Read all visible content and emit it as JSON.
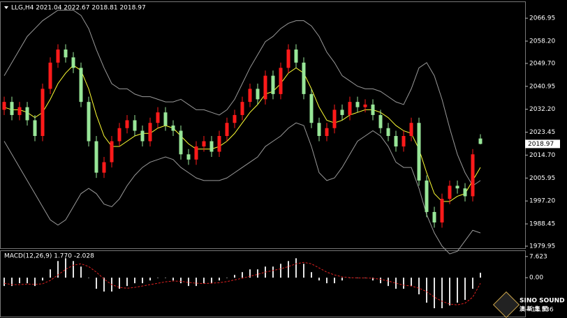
{
  "chart_data": {
    "type": "candlestick",
    "header": "LLG,H4  2021.04 2022.67 2018.81 2018.97",
    "up_color": "#ff1a1a",
    "down_color": "#98e698",
    "open": [
      2032,
      2035,
      2030,
      2033,
      2028,
      2022,
      2040,
      2050,
      2055,
      2052,
      2048,
      2035,
      2020,
      2008,
      2012,
      2020,
      2025,
      2028,
      2024,
      2020,
      2027,
      2031,
      2026,
      2024,
      2015,
      2013,
      2018,
      2020,
      2016,
      2022,
      2027,
      2030,
      2035,
      2040,
      2036,
      2045,
      2038,
      2048,
      2055,
      2050,
      2038,
      2027,
      2022,
      2025,
      2032,
      2030,
      2035,
      2033,
      2034,
      2030,
      2025,
      2022,
      2018,
      2022,
      2027,
      2005,
      1993,
      1989,
      1998,
      2003,
      2002,
      1999,
      2021.04
    ],
    "high": [
      2037,
      2037,
      2035,
      2035,
      2030,
      2042,
      2052,
      2057,
      2057,
      2054,
      2050,
      2037,
      2022,
      2014,
      2022,
      2027,
      2030,
      2030,
      2026,
      2029,
      2033,
      2033,
      2028,
      2026,
      2017,
      2020,
      2022,
      2022,
      2024,
      2029,
      2032,
      2037,
      2042,
      2042,
      2047,
      2047,
      2050,
      2057,
      2057,
      2052,
      2040,
      2029,
      2027,
      2034,
      2034,
      2037,
      2037,
      2036,
      2036,
      2032,
      2027,
      2024,
      2024,
      2029,
      2029,
      2007,
      1995,
      2000,
      2005,
      2005,
      2004,
      2017,
      2022.67
    ],
    "low": [
      2030,
      2028,
      2028,
      2026,
      2020,
      2020,
      2038,
      2048,
      2050,
      2046,
      2033,
      2018,
      2006,
      2006,
      2010,
      2018,
      2023,
      2022,
      2018,
      2018,
      2025,
      2024,
      2022,
      2013,
      2011,
      2011,
      2016,
      2014,
      2014,
      2020,
      2025,
      2028,
      2033,
      2034,
      2034,
      2036,
      2036,
      2046,
      2048,
      2036,
      2025,
      2020,
      2020,
      2023,
      2028,
      2028,
      2031,
      2031,
      2028,
      2023,
      2020,
      2016,
      2016,
      2020,
      2003,
      1991,
      1987,
      1987,
      1996,
      2000,
      1997,
      1997,
      2018.81
    ],
    "close": [
      2035,
      2030,
      2033,
      2028,
      2022,
      2040,
      2050,
      2055,
      2052,
      2048,
      2035,
      2020,
      2008,
      2012,
      2020,
      2025,
      2028,
      2024,
      2020,
      2027,
      2031,
      2026,
      2024,
      2015,
      2013,
      2018,
      2020,
      2016,
      2022,
      2027,
      2030,
      2035,
      2040,
      2036,
      2045,
      2038,
      2048,
      2055,
      2050,
      2038,
      2027,
      2022,
      2025,
      2032,
      2030,
      2035,
      2033,
      2034,
      2030,
      2025,
      2022,
      2018,
      2022,
      2027,
      2005,
      1993,
      1989,
      1998,
      2003,
      2002,
      1999,
      2015,
      2018.97
    ],
    "series": [
      {
        "color": "#9a9a9a",
        "values": [
          2045,
          2050,
          2055,
          2060,
          2063,
          2066,
          2068,
          2070,
          2070,
          2070,
          2068,
          2063,
          2055,
          2048,
          2042,
          2040,
          2040,
          2038,
          2037,
          2037,
          2036,
          2035,
          2035,
          2036,
          2034,
          2032,
          2032,
          2031,
          2030,
          2032,
          2036,
          2042,
          2048,
          2053,
          2058,
          2060,
          2063,
          2065,
          2066,
          2066,
          2064,
          2060,
          2054,
          2050,
          2045,
          2043,
          2041,
          2040,
          2040,
          2039,
          2037,
          2035,
          2034,
          2040,
          2048,
          2050,
          2045,
          2036,
          2025,
          2015,
          2008,
          2003,
          2005
        ]
      },
      {
        "color": "#ffff33",
        "values": [
          2033,
          2032,
          2032,
          2031,
          2029,
          2031,
          2036,
          2042,
          2046,
          2049,
          2047,
          2040,
          2030,
          2022,
          2018,
          2018,
          2020,
          2022,
          2023,
          2023,
          2025,
          2026,
          2025,
          2022,
          2019,
          2017,
          2017,
          2017,
          2018,
          2020,
          2023,
          2027,
          2031,
          2034,
          2038,
          2039,
          2042,
          2046,
          2048,
          2046,
          2040,
          2033,
          2028,
          2027,
          2028,
          2030,
          2031,
          2032,
          2032,
          2031,
          2029,
          2026,
          2024,
          2023,
          2017,
          2008,
          2000,
          1997,
          1997,
          1999,
          2000,
          2005,
          2010
        ]
      },
      {
        "color": "#9a9a9a",
        "values": [
          2020,
          2015,
          2010,
          2005,
          2000,
          1995,
          1990,
          1988,
          1990,
          1995,
          2000,
          2002,
          2000,
          1996,
          1995,
          1998,
          2003,
          2007,
          2010,
          2012,
          2013,
          2014,
          2013,
          2010,
          2008,
          2006,
          2005,
          2005,
          2005,
          2006,
          2008,
          2010,
          2012,
          2014,
          2018,
          2020,
          2022,
          2025,
          2027,
          2026,
          2018,
          2008,
          2005,
          2006,
          2010,
          2015,
          2020,
          2022,
          2024,
          2022,
          2018,
          2012,
          2010,
          2010,
          2002,
          1992,
          1985,
          1980,
          1977,
          1978,
          1982,
          1986,
          1985
        ]
      }
    ],
    "ylim": [
      1979.15,
      2073.1
    ],
    "yticks": [
      2066.95,
      {
        "value": 2058.2,
        "label": "2058.20"
      },
      {
        "value": 2049.7,
        "label": "2049.70"
      },
      2040.95,
      {
        "value": 2032.2,
        "label": "2032.20"
      },
      2023.45,
      {
        "value": 2014.7,
        "label": "2014.70"
      },
      2005.95,
      {
        "value": 1997.2,
        "label": "1997.20"
      },
      1988.45,
      1979.95
    ],
    "indicator": {
      "title": "MACD(12,26,9) 1.770 -2.028",
      "histogram": {
        "color": "#e6e6e6",
        "values": [
          -3,
          -3,
          -2,
          -2,
          -3,
          -1,
          3,
          6,
          7,
          6,
          4,
          0,
          -4,
          -5,
          -5,
          -4,
          -3,
          -2,
          -2,
          -1,
          0,
          0,
          -1,
          -2,
          -3,
          -3,
          -2,
          -2,
          -1,
          0,
          1,
          2,
          3,
          3,
          4,
          4,
          5,
          6,
          7,
          5,
          2,
          -1,
          -2,
          -2,
          -1,
          0,
          0,
          0,
          -1,
          -2,
          -3,
          -4,
          -4,
          -3,
          -6,
          -9,
          -11,
          -11,
          -10,
          -9,
          -8,
          -4,
          1.77
        ]
      },
      "signal": {
        "color": "#e02020",
        "values": [
          -2,
          -2.5,
          -2.5,
          -2.3,
          -2.4,
          -2.2,
          -1,
          1,
          3,
          4.5,
          5,
          4,
          2,
          -0.5,
          -2.5,
          -3.5,
          -3.8,
          -3.5,
          -3,
          -2.5,
          -2,
          -1.5,
          -1.2,
          -1.3,
          -1.7,
          -2,
          -2.1,
          -2,
          -1.8,
          -1.4,
          -0.8,
          -0.2,
          0.5,
          1.2,
          2,
          2.6,
          3.2,
          4,
          5,
          5.5,
          5,
          3.5,
          2,
          1,
          0.3,
          0,
          -0.1,
          -0.1,
          -0.2,
          -0.6,
          -1.2,
          -2,
          -2.7,
          -3,
          -3.8,
          -5,
          -7,
          -8.5,
          -9.5,
          -9.8,
          -9.2,
          -7,
          -2.028
        ]
      },
      "ylim": [
        -14.02,
        9.59
      ],
      "yticks": [
        7.623,
        {
          "value": 0,
          "label": "0.00"
        },
        -11.536
      ]
    },
    "logo": {
      "name": "SINO SOUND",
      "subtitle": "澳 新 集 团"
    }
  }
}
